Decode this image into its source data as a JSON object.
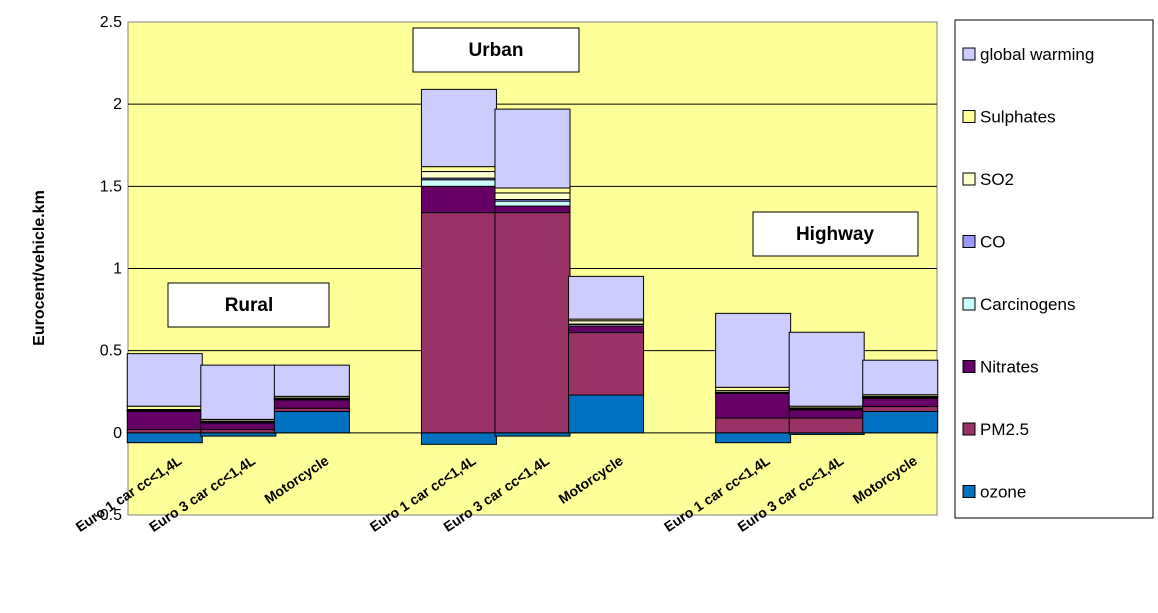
{
  "chart_data": {
    "type": "bar",
    "stacked": true,
    "title": "",
    "xlabel": "",
    "ylabel": "Eurocent/vehicle.km",
    "ylim": [
      -0.5,
      2.5
    ],
    "yticks": [
      "-0.5",
      "0",
      "0.5",
      "1",
      "1.5",
      "2",
      "2.5"
    ],
    "grid": true,
    "plot_background": "#ffff99",
    "legend_position": "right",
    "regions": [
      "Rural",
      "Urban",
      "Highway"
    ],
    "categories": [
      "Euro 1 car cc<1,4L",
      "Euro 3 car cc<1,4L",
      "Motorcycle",
      "",
      "Euro 1 car cc<1,4L",
      "Euro 3 car cc<1,4L",
      "Motorcycle",
      "",
      "Euro 1 car cc<1,4L",
      "Euro 3 car cc<1,4L",
      "Motorcycle"
    ],
    "series": [
      {
        "name": "ozone",
        "color": "#0070c0",
        "values": [
          -0.06,
          -0.02,
          0.13,
          null,
          -0.07,
          -0.02,
          0.23,
          null,
          -0.06,
          -0.01,
          0.13
        ]
      },
      {
        "name": "PM2.5",
        "color": "#993366",
        "values": [
          0.02,
          0.02,
          0.02,
          null,
          1.34,
          1.34,
          0.38,
          null,
          0.09,
          0.09,
          0.03
        ]
      },
      {
        "name": "Nitrates",
        "color": "#660066",
        "values": [
          0.11,
          0.04,
          0.05,
          null,
          0.16,
          0.04,
          0.04,
          null,
          0.15,
          0.05,
          0.05
        ]
      },
      {
        "name": "Carcinogens",
        "color": "#ccffff",
        "values": [
          0.005,
          0.005,
          0.005,
          null,
          0.04,
          0.03,
          0.01,
          null,
          0.005,
          0.005,
          0.005
        ]
      },
      {
        "name": "CO",
        "color": "#9999ff",
        "values": [
          0.002,
          0.002,
          0.002,
          null,
          0.01,
          0.01,
          0.002,
          null,
          0.002,
          0.002,
          0.002
        ]
      },
      {
        "name": "SO2",
        "color": "#ffffcc",
        "values": [
          0.005,
          0.005,
          0.005,
          null,
          0.04,
          0.04,
          0.02,
          null,
          0.01,
          0.005,
          0.005
        ]
      },
      {
        "name": "Sulphates",
        "color": "#ffff99",
        "values": [
          0.02,
          0.01,
          0.01,
          null,
          0.03,
          0.03,
          0.01,
          null,
          0.02,
          0.01,
          0.01
        ]
      },
      {
        "name": "global warming",
        "color": "#ccccff",
        "values": [
          0.32,
          0.33,
          0.19,
          null,
          0.47,
          0.48,
          0.26,
          null,
          0.45,
          0.45,
          0.21
        ]
      }
    ]
  }
}
